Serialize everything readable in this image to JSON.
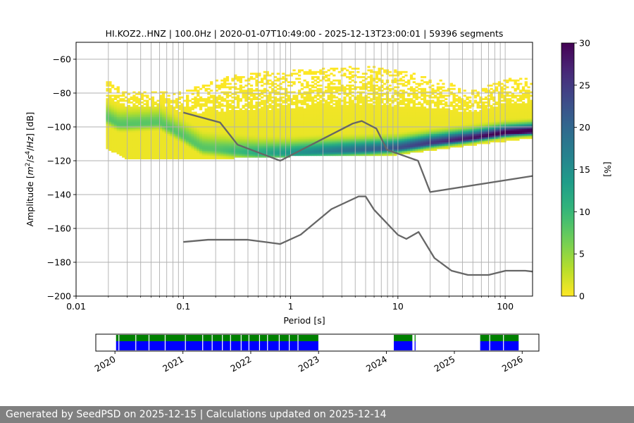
{
  "chart_data": [
    {
      "type": "heatmap",
      "title": "HI.KOZ2..HNZ | 100.0Hz | 2020-01-07T10:49:00 - 2025-12-13T23:00:01 | 59396 segments",
      "xlabel": "Period [s]",
      "ylabel_parts": [
        "Amplitude [",
        "m",
        "2",
        "/",
        "s",
        "4",
        "/",
        "Hz",
        "] [dB]"
      ],
      "xscale": "log",
      "xlim": [
        0.01,
        180
      ],
      "ylim": [
        -200,
        -50
      ],
      "xticks": [
        0.01,
        0.1,
        1,
        10,
        100
      ],
      "xtick_labels": [
        "0.01",
        "0.1",
        "1",
        "10",
        "100"
      ],
      "yticks": [
        -200,
        -180,
        -160,
        -140,
        -120,
        -100,
        -80,
        -60
      ],
      "ytick_labels": [
        "−200",
        "−180",
        "−160",
        "−140",
        "−120",
        "−100",
        "−80",
        "−60"
      ],
      "colormap": "viridis_r",
      "colorbar": {
        "label": "[%]",
        "range": [
          0,
          30
        ],
        "ticks": [
          0,
          5,
          10,
          15,
          20,
          25,
          30
        ],
        "tick_labels": [
          "0",
          "5",
          "10",
          "15",
          "20",
          "25",
          "30"
        ]
      },
      "grid": true,
      "psd_mode": [
        [
          0.019,
          -95
        ],
        [
          0.025,
          -99
        ],
        [
          0.03,
          -99
        ],
        [
          0.06,
          -98
        ],
        [
          0.1,
          -106
        ],
        [
          0.15,
          -113
        ],
        [
          0.3,
          -115
        ],
        [
          0.5,
          -116
        ],
        [
          1,
          -116
        ],
        [
          2,
          -115
        ],
        [
          5,
          -114
        ],
        [
          10,
          -113
        ],
        [
          20,
          -110
        ],
        [
          50,
          -107
        ],
        [
          100,
          -104
        ],
        [
          180,
          -103
        ]
      ],
      "psd_envelope": [
        [
          0.019,
          -112
        ],
        [
          0.025,
          -116
        ],
        [
          0.03,
          -119
        ],
        [
          0.1,
          -119
        ],
        [
          0.3,
          -118
        ],
        [
          1,
          -117
        ],
        [
          3,
          -117
        ],
        [
          10,
          -116
        ],
        [
          30,
          -112
        ],
        [
          100,
          -108
        ],
        [
          180,
          -106
        ]
      ],
      "psd_upper_edge": [
        [
          0.019,
          -73
        ],
        [
          0.03,
          -80
        ],
        [
          0.1,
          -80
        ],
        [
          0.3,
          -70
        ],
        [
          1,
          -68
        ],
        [
          3,
          -66
        ],
        [
          5,
          -65
        ],
        [
          10,
          -68
        ],
        [
          20,
          -72
        ],
        [
          50,
          -80
        ],
        [
          100,
          -73
        ],
        [
          180,
          -72
        ]
      ],
      "series": [
        {
          "name": "NHNM",
          "color": "#666666",
          "x": [
            0.1,
            0.22,
            0.32,
            0.8,
            3.8,
            4.6,
            6.3,
            7.9,
            15.4,
            20,
            180
          ],
          "y": [
            -91.5,
            -97.4,
            -110.5,
            -120,
            -98,
            -96.5,
            -101,
            -113.5,
            -120,
            -138.5,
            -129
          ]
        },
        {
          "name": "NLNM",
          "color": "#666666",
          "x": [
            0.1,
            0.17,
            0.4,
            0.8,
            1.24,
            2.4,
            4.3,
            5,
            6,
            10,
            12,
            15.6,
            21.9,
            31.6,
            45,
            70,
            101,
            154,
            180
          ],
          "y": [
            -168,
            -166.7,
            -166.7,
            -169.2,
            -163.7,
            -148.6,
            -141.1,
            -141.1,
            -149,
            -163.8,
            -166.2,
            -162.1,
            -177.5,
            -185,
            -187.5,
            -187.5,
            -185,
            -185,
            -185.5
          ]
        }
      ],
      "period_gridlines": [
        0.02,
        0.03,
        0.04,
        0.05,
        0.06,
        0.07,
        0.08,
        0.09,
        0.1,
        0.2,
        0.3,
        0.4,
        0.5,
        0.6,
        0.7,
        0.8,
        0.9,
        1,
        2,
        3,
        4,
        5,
        6,
        7,
        8,
        9,
        10,
        20,
        30,
        40,
        50,
        60,
        70,
        80,
        90,
        100
      ]
    },
    {
      "type": "timeline",
      "x_start": "2019-09-20",
      "x_end": "2026-04-01",
      "xticks": [
        "2020-01-01",
        "2021-01-01",
        "2022-01-01",
        "2023-01-01",
        "2024-01-01",
        "2025-01-01",
        "2026-01-01"
      ],
      "xtick_labels": [
        "2020",
        "2021",
        "2022",
        "2023",
        "2024",
        "2025",
        "2026"
      ],
      "colors": {
        "available": "#008000",
        "processed": "#0000ff"
      },
      "available_spans": [
        [
          "2020-01-07",
          "2022-12-31"
        ],
        [
          "2024-02-10",
          "2024-05-20"
        ],
        [
          "2024-06-01",
          "2024-06-06"
        ],
        [
          "2025-05-20",
          "2025-12-13"
        ]
      ],
      "processed_spans": [
        [
          "2020-01-07",
          "2022-12-31"
        ],
        [
          "2024-02-10",
          "2024-05-20"
        ],
        [
          "2024-06-01",
          "2024-06-06"
        ],
        [
          "2025-05-20",
          "2025-12-13"
        ]
      ],
      "processed_gaps": [
        "2020-01-20",
        "2020-04-20",
        "2020-06-30",
        "2020-09-25",
        "2021-01-12",
        "2021-04-15",
        "2021-06-05",
        "2021-07-30",
        "2021-09-12",
        "2021-11-08",
        "2021-12-20",
        "2022-02-15",
        "2022-03-30",
        "2022-06-01",
        "2022-07-25",
        "2022-09-10",
        "2025-07-08",
        "2025-09-20"
      ]
    }
  ],
  "footer": {
    "text": "Generated by SeedPSD on 2025-12-15 | Calculations updated on 2025-12-14"
  }
}
